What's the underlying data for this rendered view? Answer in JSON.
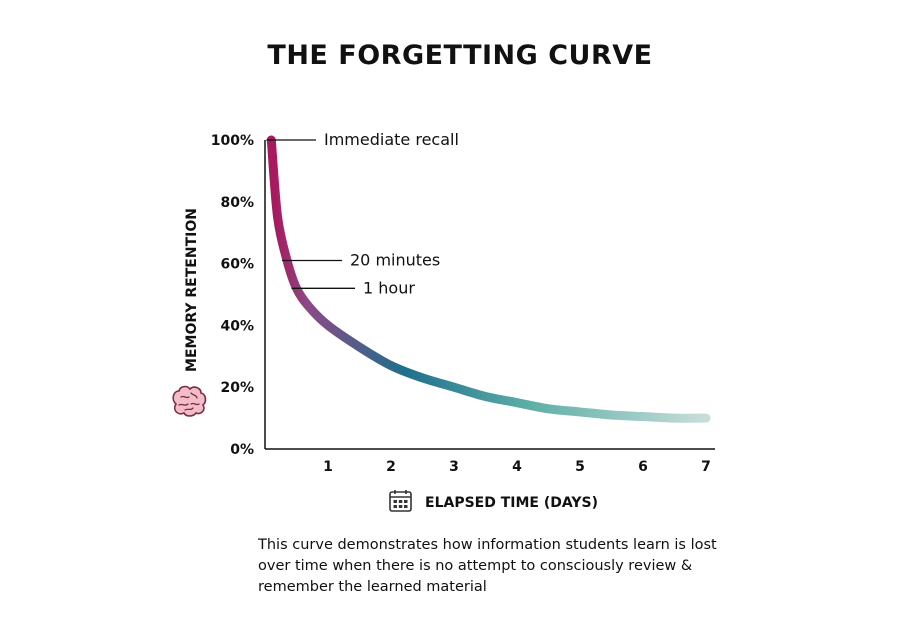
{
  "chart_data": {
    "type": "line",
    "title": "THE FORGETTING CURVE",
    "xlabel": "ELAPSED TIME (DAYS)",
    "ylabel": "MEMORY RETENTION",
    "xlim": [
      0,
      7
    ],
    "ylim": [
      0,
      100
    ],
    "x_ticks": [
      1,
      2,
      3,
      4,
      5,
      6,
      7
    ],
    "y_ticks": [
      {
        "value": 0,
        "label": "0%"
      },
      {
        "value": 20,
        "label": "20%"
      },
      {
        "value": 40,
        "label": "40%"
      },
      {
        "value": 60,
        "label": "60%"
      },
      {
        "value": 80,
        "label": "80%"
      },
      {
        "value": 100,
        "label": "100%"
      }
    ],
    "grid": false,
    "series": [
      {
        "x": [
          0.1,
          0.2,
          0.35,
          0.5,
          0.7,
          1,
          1.5,
          2,
          2.5,
          3,
          3.5,
          4,
          4.5,
          5,
          5.5,
          6,
          6.5,
          7
        ],
        "y": [
          100,
          75,
          61,
          52,
          46,
          40,
          33,
          27,
          23,
          20,
          17,
          15,
          13,
          12,
          11,
          10.5,
          10,
          10
        ]
      }
    ],
    "gradient_colors": [
      "#a8195e",
      "#8a4a86",
      "#1f6f8b",
      "#5fb0a8",
      "#c9ddd8"
    ],
    "annotations": [
      {
        "label": "Immediate recall",
        "x": 0.1,
        "y": 100
      },
      {
        "label": "20 minutes",
        "x": 0.35,
        "y": 61
      },
      {
        "label": "1 hour",
        "x": 0.5,
        "y": 52
      }
    ],
    "icons": {
      "ylabel": "brain-icon",
      "xlabel": "calendar-icon"
    }
  },
  "caption": "This curve demonstrates how information students learn is lost over time when there is no attempt to consciously review & remember the learned material"
}
